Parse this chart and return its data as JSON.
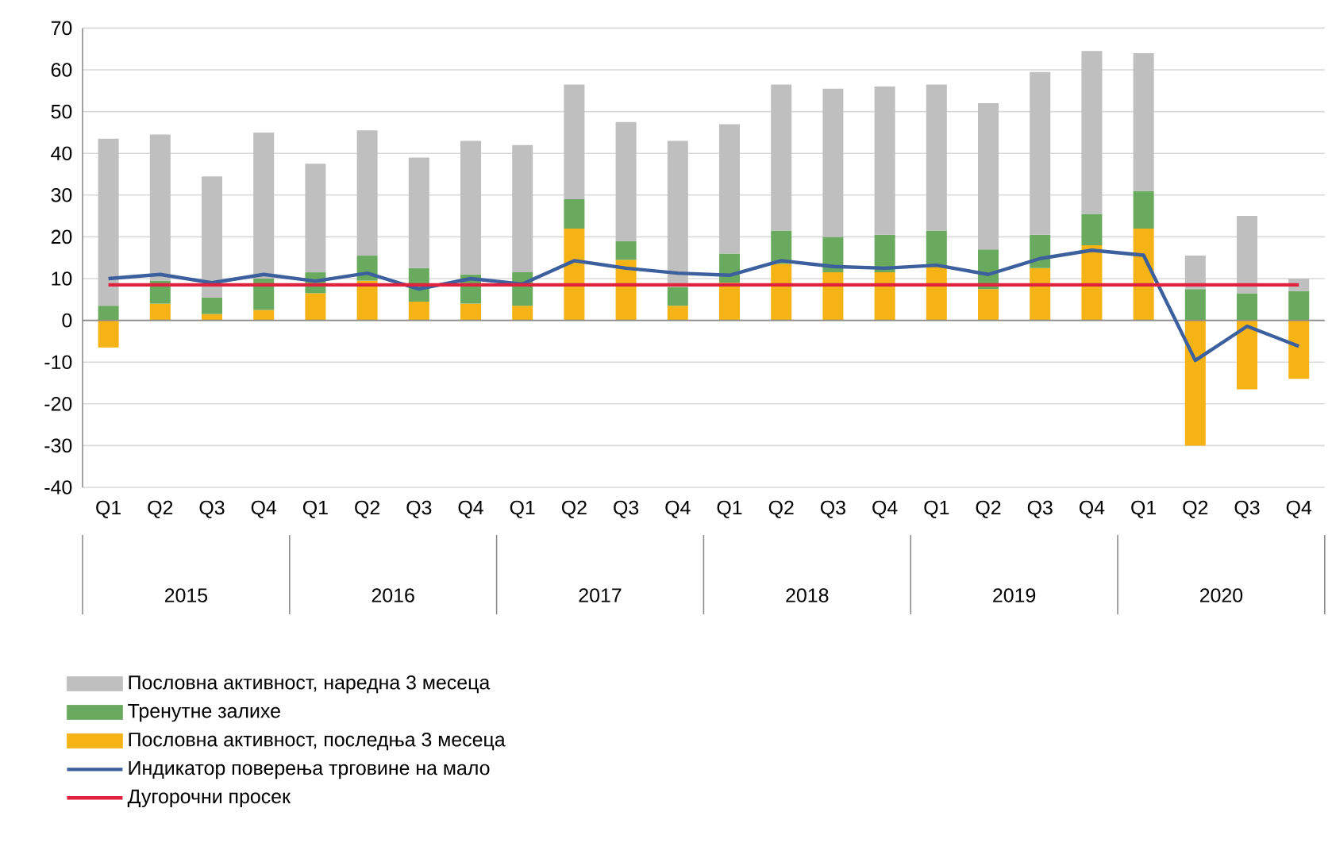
{
  "chart_data": {
    "type": "bar",
    "stacked": true,
    "categories": [
      "Q1",
      "Q2",
      "Q3",
      "Q4",
      "Q1",
      "Q2",
      "Q3",
      "Q4",
      "Q1",
      "Q2",
      "Q3",
      "Q4",
      "Q1",
      "Q2",
      "Q3",
      "Q4",
      "Q1",
      "Q2",
      "Q3",
      "Q4",
      "Q1",
      "Q2",
      "Q3",
      "Q4"
    ],
    "annotations": [
      "2015",
      "2016",
      "2017",
      "2018",
      "2019",
      "2020"
    ],
    "series": [
      {
        "name": "Пословна активност, последња 3 месеца",
        "type": "bar",
        "color": "#f5b316",
        "values": [
          -6.5,
          4,
          1.5,
          2.5,
          6.5,
          9.5,
          4.5,
          4,
          3.5,
          22,
          14.5,
          3.5,
          9,
          13.5,
          11.5,
          11.5,
          13,
          7.5,
          12.5,
          18,
          22,
          -30,
          -16.5,
          -14
        ]
      },
      {
        "name": "Тренутне залихе",
        "type": "bar",
        "color": "#6aaa5e",
        "values": [
          3.5,
          5.5,
          4,
          7.5,
          5,
          6,
          8,
          7,
          8,
          7,
          4.5,
          4.5,
          7,
          8,
          8.5,
          9,
          8.5,
          9.5,
          8,
          7.5,
          9,
          7.5,
          6.5,
          7
        ]
      },
      {
        "name": "Пословна активност, наредна 3 месеца",
        "type": "bar",
        "color": "#bfbfbf",
        "values": [
          40,
          35,
          29,
          35,
          26,
          30,
          26.5,
          32,
          30.5,
          27.5,
          28.5,
          35,
          31,
          35,
          35.5,
          35.5,
          35,
          35,
          39,
          39,
          33,
          8,
          18.5,
          3
        ]
      },
      {
        "name": "Индикатор поверења трговине на мало",
        "type": "line",
        "color": "#3c5f9d",
        "values": [
          10,
          11,
          9,
          11,
          9.4,
          11.3,
          7.5,
          10,
          8.7,
          14.3,
          12.5,
          11.3,
          10.8,
          14.3,
          12.9,
          12.5,
          13.2,
          11,
          14.8,
          16.8,
          15.6,
          -9.6,
          -1.4,
          -6.2
        ]
      },
      {
        "name": "Дугорочни просек",
        "type": "line",
        "color": "#e0203c",
        "values": [
          8.5,
          8.5,
          8.5,
          8.5,
          8.5,
          8.5,
          8.5,
          8.5,
          8.5,
          8.5,
          8.5,
          8.5,
          8.5,
          8.5,
          8.5,
          8.5,
          8.5,
          8.5,
          8.5,
          8.5,
          8.5,
          8.5,
          8.5,
          8.5
        ]
      }
    ],
    "ylim": [
      -40,
      70
    ],
    "yticks": [
      -40,
      -30,
      -20,
      -10,
      0,
      10,
      20,
      30,
      40,
      50,
      60,
      70
    ],
    "grid": "y",
    "legend": "bottom left",
    "marker": "none",
    "line_style": "solid"
  }
}
